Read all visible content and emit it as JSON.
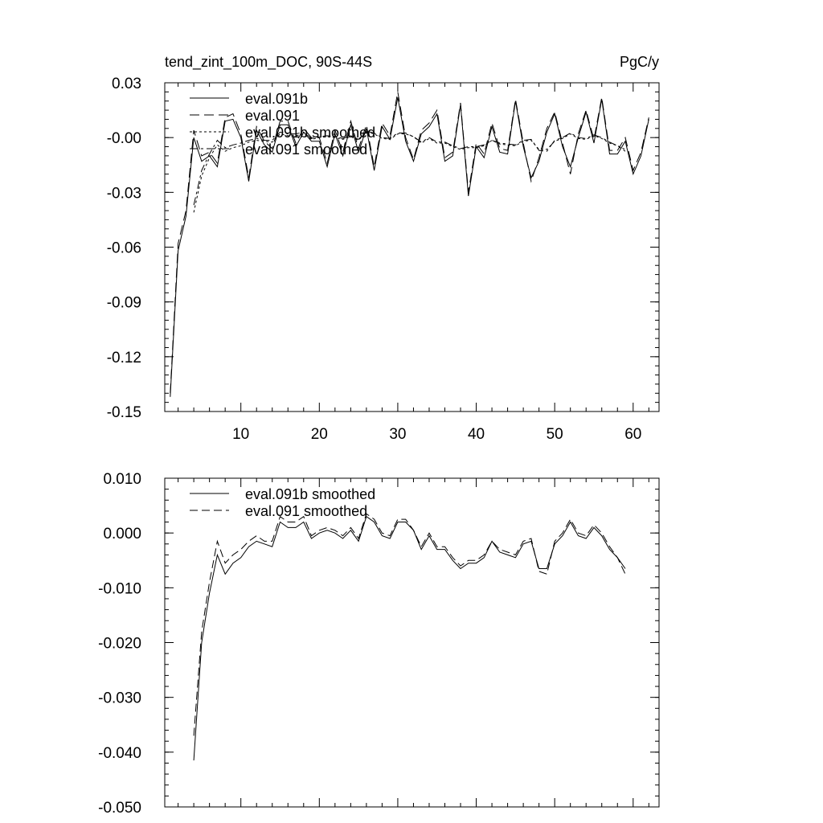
{
  "chart_data": [
    {
      "type": "line",
      "title": "tend_zint_100m_DOC, 90S-44S",
      "units_label": "PgC/y",
      "xlim": [
        0.3,
        63.3
      ],
      "ylim": [
        -0.15,
        0.03
      ],
      "xticks": [
        10,
        20,
        30,
        40,
        50,
        60
      ],
      "xtick_labels": [
        "10",
        "20",
        "30",
        "40",
        "50",
        "60"
      ],
      "yticks": [
        0.03,
        0.0,
        -0.03,
        -0.06,
        -0.09,
        -0.12,
        -0.15
      ],
      "ytick_labels": [
        "0.03",
        "-0.00",
        "-0.03",
        "-0.06",
        "-0.09",
        "-0.12",
        "-0.15"
      ],
      "legend_position": "top-left",
      "x": [
        1,
        2,
        3,
        4,
        5,
        6,
        7,
        8,
        9,
        10,
        11,
        12,
        13,
        14,
        15,
        16,
        17,
        18,
        19,
        20,
        21,
        22,
        23,
        24,
        25,
        26,
        27,
        28,
        29,
        30,
        31,
        32,
        33,
        34,
        35,
        36,
        37,
        38,
        39,
        40,
        41,
        42,
        43,
        44,
        45,
        46,
        47,
        48,
        49,
        50,
        51,
        52,
        53,
        54,
        55,
        56,
        57,
        58,
        59,
        60,
        61,
        62
      ],
      "series": [
        {
          "name": "eval.091b",
          "dash": "none",
          "x": [
            1,
            2,
            3,
            4,
            5,
            6,
            7,
            8,
            9,
            10,
            11,
            12,
            13,
            14,
            15,
            16,
            17,
            18,
            19,
            20,
            21,
            22,
            23,
            24,
            25,
            26,
            27,
            28,
            29,
            30,
            31,
            32,
            33,
            34,
            35,
            36,
            37,
            38,
            39,
            40,
            41,
            42,
            43,
            44,
            45,
            46,
            47,
            48,
            49,
            50,
            51,
            52,
            53,
            54,
            55,
            56,
            57,
            58,
            59,
            60,
            61,
            62
          ],
          "values": [
            -0.142,
            -0.062,
            -0.043,
            0.0,
            -0.013,
            -0.01,
            -0.016,
            0.009,
            0.01,
            0.0,
            -0.024,
            0.004,
            -0.004,
            -0.008,
            0.007,
            0.007,
            -0.005,
            0.003,
            -0.002,
            -0.002,
            -0.016,
            0.002,
            -0.01,
            0.007,
            -0.008,
            0.005,
            -0.018,
            0.006,
            -0.001,
            0.022,
            -0.002,
            -0.013,
            0.002,
            0.006,
            0.013,
            -0.013,
            -0.01,
            0.018,
            -0.032,
            -0.005,
            -0.011,
            0.006,
            -0.008,
            -0.009,
            0.02,
            -0.005,
            -0.022,
            -0.013,
            0.003,
            0.013,
            -0.005,
            -0.016,
            0.0,
            0.014,
            -0.003,
            0.021,
            -0.009,
            -0.009,
            -0.002,
            -0.02,
            -0.01,
            0.01
          ]
        },
        {
          "name": "eval.091",
          "dash": "12,6",
          "x": [
            1,
            2,
            3,
            4,
            5,
            6,
            7,
            8,
            9,
            10,
            11,
            12,
            13,
            14,
            15,
            16,
            17,
            18,
            19,
            20,
            21,
            22,
            23,
            24,
            25,
            26,
            27,
            28,
            29,
            30,
            31,
            32,
            33,
            34,
            35,
            36,
            37,
            38,
            39,
            40,
            41,
            42,
            43,
            44,
            45,
            46,
            47,
            48,
            49,
            50,
            51,
            52,
            53,
            54,
            55,
            56,
            57,
            58,
            59,
            60,
            61,
            62
          ],
          "values": [
            -0.14,
            -0.058,
            -0.04,
            0.004,
            -0.01,
            -0.008,
            -0.014,
            0.011,
            0.013,
            0.002,
            -0.022,
            0.006,
            -0.002,
            -0.006,
            0.009,
            0.009,
            -0.003,
            0.005,
            0.0,
            0.0,
            -0.014,
            0.004,
            -0.008,
            0.009,
            -0.006,
            0.007,
            -0.016,
            0.008,
            0.001,
            0.025,
            0.0,
            -0.012,
            0.004,
            0.008,
            0.015,
            -0.011,
            -0.008,
            0.019,
            -0.03,
            -0.003,
            -0.009,
            0.008,
            -0.006,
            -0.007,
            0.021,
            -0.003,
            -0.024,
            -0.011,
            0.005,
            0.014,
            -0.003,
            -0.02,
            0.002,
            0.015,
            -0.001,
            0.022,
            -0.007,
            -0.007,
            0.0,
            -0.018,
            -0.008,
            0.011
          ]
        },
        {
          "name": "eval.091b smoothed",
          "dash": "3,3",
          "x": [
            4,
            5,
            6,
            7,
            8,
            9,
            10,
            11,
            12,
            13,
            14,
            15,
            16,
            17,
            18,
            19,
            20,
            21,
            22,
            23,
            24,
            25,
            26,
            27,
            28,
            29,
            30,
            31,
            32,
            33,
            34,
            35,
            36,
            37,
            38,
            39,
            40,
            41,
            42,
            43,
            44,
            45,
            46,
            47,
            48,
            49,
            50,
            51,
            52,
            53,
            54,
            55,
            56,
            57,
            58,
            59
          ],
          "values": [
            -0.041,
            -0.021,
            -0.011,
            -0.004,
            -0.0075,
            -0.0055,
            -0.0045,
            -0.0025,
            -0.0015,
            -0.002,
            -0.0025,
            0.002,
            0.001,
            0.001,
            0.002,
            -0.001,
            0.0,
            0.0005,
            0.0,
            -0.001,
            0.0005,
            -0.0015,
            0.003,
            0.002,
            -0.0005,
            -0.001,
            0.002,
            0.002,
            0.0005,
            -0.003,
            -0.0005,
            -0.003,
            -0.003,
            -0.005,
            -0.0065,
            -0.0055,
            -0.0055,
            -0.0045,
            -0.0015,
            -0.0035,
            -0.004,
            -0.0045,
            -0.002,
            -0.0015,
            -0.0065,
            -0.0065,
            -0.002,
            -0.0005,
            0.002,
            -0.0005,
            -0.001,
            0.001,
            -0.0005,
            -0.003,
            -0.0045,
            -0.0065
          ]
        },
        {
          "name": "eval.091 smoothed",
          "dash": "10,4,3,4",
          "x": [
            4,
            5,
            6,
            7,
            8,
            9,
            10,
            11,
            12,
            13,
            14,
            15,
            16,
            17,
            18,
            19,
            20,
            21,
            22,
            23,
            24,
            25,
            26,
            27,
            28,
            29,
            30,
            31,
            32,
            33,
            34,
            35,
            36,
            37,
            38,
            39,
            40,
            41,
            42,
            43,
            44,
            45,
            46,
            47,
            48,
            49,
            50,
            51,
            52,
            53,
            54,
            55,
            56,
            57,
            58,
            59
          ],
          "values": [
            -0.037,
            -0.018,
            -0.009,
            -0.0015,
            -0.0055,
            -0.004,
            -0.003,
            -0.0015,
            -0.0005,
            -0.0015,
            -0.0015,
            0.003,
            0.002,
            0.002,
            0.003,
            -0.0005,
            0.0005,
            0.001,
            0.0005,
            -0.0005,
            0.001,
            -0.001,
            0.0035,
            0.0025,
            0.0,
            -0.0005,
            0.0025,
            0.0025,
            0.0005,
            -0.0025,
            0.0,
            -0.0025,
            -0.0025,
            -0.0045,
            -0.006,
            -0.005,
            -0.005,
            -0.004,
            -0.0015,
            -0.003,
            -0.0035,
            -0.004,
            -0.0015,
            -0.001,
            -0.007,
            -0.0075,
            -0.0015,
            0.0,
            0.0025,
            0.0,
            -0.0005,
            0.0015,
            0.0,
            -0.0025,
            -0.0045,
            -0.0075
          ]
        }
      ]
    },
    {
      "type": "line",
      "title": "",
      "xlim": [
        0.3,
        63.3
      ],
      "ylim": [
        -0.05,
        0.01
      ],
      "xticks": [
        10,
        20,
        30,
        40,
        50,
        60
      ],
      "xtick_labels": [],
      "yticks": [
        0.01,
        0.0,
        -0.01,
        -0.02,
        -0.03,
        -0.04,
        -0.05
      ],
      "ytick_labels": [
        "0.010",
        "0.000",
        "-0.010",
        "-0.020",
        "-0.030",
        "-0.040",
        "-0.050"
      ],
      "legend_position": "top-left",
      "series": [
        {
          "name": "eval.091b smoothed",
          "dash": "none",
          "x": [
            4,
            5,
            6,
            7,
            8,
            9,
            10,
            11,
            12,
            13,
            14,
            15,
            16,
            17,
            18,
            19,
            20,
            21,
            22,
            23,
            24,
            25,
            26,
            27,
            28,
            29,
            30,
            31,
            32,
            33,
            34,
            35,
            36,
            37,
            38,
            39,
            40,
            41,
            42,
            43,
            44,
            45,
            46,
            47,
            48,
            49,
            50,
            51,
            52,
            53,
            54,
            55,
            56,
            57,
            58,
            59
          ],
          "values": [
            -0.0415,
            -0.02,
            -0.011,
            -0.004,
            -0.0075,
            -0.0055,
            -0.0045,
            -0.0025,
            -0.0015,
            -0.002,
            -0.0025,
            0.002,
            0.001,
            0.001,
            0.002,
            -0.001,
            0.0,
            0.0005,
            0.0,
            -0.001,
            0.0005,
            -0.0015,
            0.003,
            0.002,
            -0.0005,
            -0.001,
            0.002,
            0.002,
            0.0005,
            -0.003,
            -0.0005,
            -0.003,
            -0.003,
            -0.005,
            -0.0065,
            -0.0055,
            -0.0055,
            -0.0045,
            -0.0015,
            -0.0035,
            -0.004,
            -0.0045,
            -0.002,
            -0.0015,
            -0.0065,
            -0.0065,
            -0.002,
            -0.0005,
            0.002,
            -0.0005,
            -0.001,
            0.001,
            -0.0005,
            -0.003,
            -0.0045,
            -0.0065
          ]
        },
        {
          "name": "eval.091 smoothed",
          "dash": "10,5",
          "x": [
            4,
            5,
            6,
            7,
            8,
            9,
            10,
            11,
            12,
            13,
            14,
            15,
            16,
            17,
            18,
            19,
            20,
            21,
            22,
            23,
            24,
            25,
            26,
            27,
            28,
            29,
            30,
            31,
            32,
            33,
            34,
            35,
            36,
            37,
            38,
            39,
            40,
            41,
            42,
            43,
            44,
            45,
            46,
            47,
            48,
            49,
            50,
            51,
            52,
            53,
            54,
            55,
            56,
            57,
            58,
            59
          ],
          "values": [
            -0.037,
            -0.018,
            -0.009,
            -0.0015,
            -0.0055,
            -0.004,
            -0.003,
            -0.0015,
            -0.0005,
            -0.0015,
            -0.0015,
            0.003,
            0.002,
            0.002,
            0.003,
            -0.0005,
            0.0005,
            0.001,
            0.0005,
            -0.0005,
            0.001,
            -0.001,
            0.0035,
            0.0025,
            0.0,
            -0.0005,
            0.0025,
            0.0025,
            0.0005,
            -0.0025,
            0.0,
            -0.0025,
            -0.0025,
            -0.0045,
            -0.006,
            -0.005,
            -0.005,
            -0.004,
            -0.0015,
            -0.003,
            -0.0035,
            -0.004,
            -0.0015,
            -0.001,
            -0.007,
            -0.0075,
            -0.0015,
            0.0,
            0.0025,
            0.0,
            -0.0005,
            0.0015,
            0.0,
            -0.0025,
            -0.0045,
            -0.0075
          ]
        }
      ]
    }
  ]
}
